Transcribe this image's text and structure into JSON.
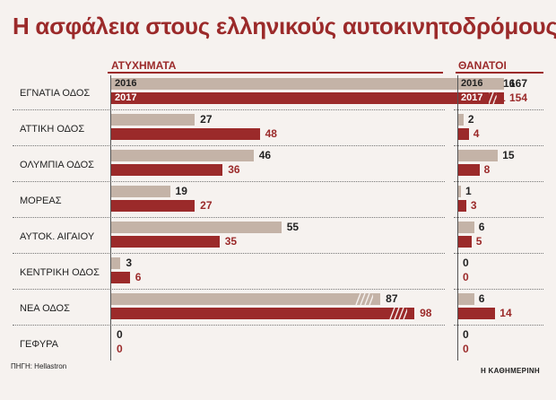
{
  "title": "Η ασφάλεια στους ελληνικούς αυτοκινητοδρόμους",
  "source": "ΠΗΓΗ: Hellastron",
  "brand": "Η ΚΑΘΗΜΕΡΙΝΗ",
  "colors": {
    "y2016": "#c4b3a7",
    "y2017": "#9b2a2a",
    "title": "#9b2a2a"
  },
  "chart_data": [
    {
      "type": "bar",
      "title": "ΑΤΥΧΗΜΑΤΑ",
      "orientation": "horizontal",
      "categories": [
        "ΕΓΝΑΤΙΑ ΟΔΟΣ",
        "ΑΤΤΙΚΗ ΟΔΟΣ",
        "ΟΛΥΜΠΙΑ ΟΔΟΣ",
        "ΜΟΡΕΑΣ",
        "ΑΥΤΟΚ. ΑΙΓΑΙΟΥ",
        "ΚΕΝΤΡΙΚΗ ΟΔΟΣ",
        "ΝΕΑ ΟΔΟΣ",
        "ΓΕΦΥΡΑ"
      ],
      "series": [
        {
          "name": "2016",
          "values": [
            167,
            27,
            46,
            19,
            55,
            3,
            87,
            0
          ]
        },
        {
          "name": "2017",
          "values": [
            154,
            48,
            36,
            27,
            35,
            6,
            98,
            0
          ]
        }
      ],
      "broken_axis_categories": [
        "ΕΓΝΑΤΙΑ ΟΔΟΣ",
        "ΝΕΑ ΟΔΟΣ"
      ],
      "grid": false,
      "legend": "inside-first-row"
    },
    {
      "type": "bar",
      "title": "ΘΑΝΑΤΟΙ",
      "orientation": "horizontal",
      "categories": [
        "ΕΓΝΑΤΙΑ ΟΔΟΣ",
        "ΑΤΤΙΚΗ ΟΔΟΣ",
        "ΟΛΥΜΠΙΑ ΟΔΟΣ",
        "ΜΟΡΕΑΣ",
        "ΑΥΤΟΚ. ΑΙΓΑΙΟΥ",
        "ΚΕΝΤΡΙΚΗ ΟΔΟΣ",
        "ΝΕΑ ΟΔΟΣ",
        "ΓΕΦΥΡΑ"
      ],
      "series": [
        {
          "name": "2016",
          "values": [
            16,
            2,
            15,
            1,
            6,
            0,
            6,
            0
          ]
        },
        {
          "name": "2017",
          "values": [
            11,
            4,
            8,
            3,
            5,
            0,
            14,
            0
          ]
        }
      ],
      "grid": false,
      "legend": "inside-first-row"
    }
  ]
}
